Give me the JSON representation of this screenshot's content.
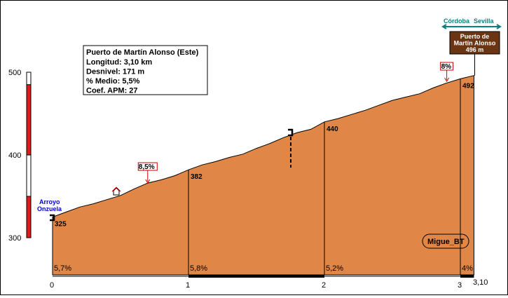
{
  "chart_data": {
    "type": "area",
    "title": "Puerto de  Martín Alonso (Este)",
    "info": [
      "Longitud: 3,10 km",
      "Desnivel: 171 m",
      "% Medio: 5,5%",
      "Coef. APM: 27"
    ],
    "x_ticks": [
      "0",
      "1",
      "2",
      "3"
    ],
    "x_end_label": "3,10",
    "y_ticks": [
      "300",
      "400",
      "500"
    ],
    "xlim": [
      0,
      3.1
    ],
    "ylim": [
      260,
      510
    ],
    "profile": [
      {
        "x": 0.0,
        "y": 325
      },
      {
        "x": 0.1,
        "y": 331
      },
      {
        "x": 0.2,
        "y": 337
      },
      {
        "x": 0.3,
        "y": 341
      },
      {
        "x": 0.4,
        "y": 346
      },
      {
        "x": 0.5,
        "y": 351
      },
      {
        "x": 0.6,
        "y": 359
      },
      {
        "x": 0.7,
        "y": 366
      },
      {
        "x": 0.8,
        "y": 370
      },
      {
        "x": 0.9,
        "y": 375
      },
      {
        "x": 1.0,
        "y": 382
      },
      {
        "x": 1.1,
        "y": 388
      },
      {
        "x": 1.2,
        "y": 392
      },
      {
        "x": 1.3,
        "y": 397
      },
      {
        "x": 1.4,
        "y": 401
      },
      {
        "x": 1.5,
        "y": 408
      },
      {
        "x": 1.6,
        "y": 414
      },
      {
        "x": 1.7,
        "y": 421
      },
      {
        "x": 1.8,
        "y": 427
      },
      {
        "x": 1.9,
        "y": 431
      },
      {
        "x": 2.0,
        "y": 440
      },
      {
        "x": 2.1,
        "y": 444
      },
      {
        "x": 2.2,
        "y": 449
      },
      {
        "x": 2.3,
        "y": 454
      },
      {
        "x": 2.4,
        "y": 460
      },
      {
        "x": 2.5,
        "y": 466
      },
      {
        "x": 2.6,
        "y": 470
      },
      {
        "x": 2.7,
        "y": 474
      },
      {
        "x": 2.8,
        "y": 481
      },
      {
        "x": 2.9,
        "y": 487
      },
      {
        "x": 3.0,
        "y": 492
      },
      {
        "x": 3.1,
        "y": 496
      }
    ],
    "km_markers": [
      {
        "x": 0,
        "elev": "325",
        "slope": "5,7%"
      },
      {
        "x": 1,
        "elev": "382",
        "slope": "5,8%"
      },
      {
        "x": 2,
        "elev": "440",
        "slope": "5,2%"
      },
      {
        "x": 3,
        "elev": "492",
        "slope": "4%"
      }
    ],
    "flags": [
      {
        "x": 0.7,
        "label": "8,5%"
      },
      {
        "x": 2.9,
        "label": "8%"
      }
    ],
    "start_label_line1": "Arroyo",
    "start_label_line2": "Onzuela",
    "summit_sign": [
      "Puerto de",
      "Martín Alonso",
      "496 m"
    ],
    "direction_left": "Córdoba",
    "direction_right": "Sevilla",
    "author": "Migue_BT",
    "colors": {
      "profile": "#E08646",
      "summit_sign": "#6B3412",
      "direction": "#0E7E80",
      "bar_red": "#DD1C1C",
      "label_blue": "#0000CC"
    }
  }
}
